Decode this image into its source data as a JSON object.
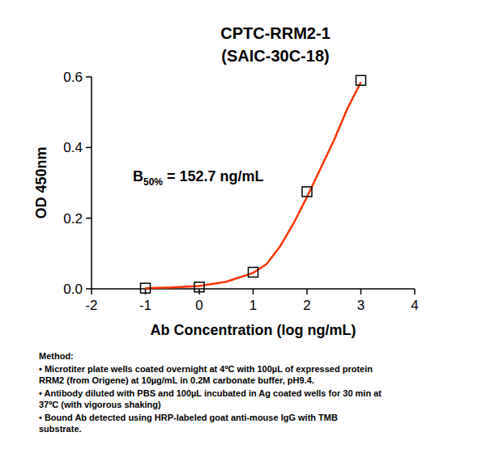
{
  "chart_data": {
    "type": "scatter",
    "title": "CPTC-RRM2-1",
    "subtitle": "(SAIC-30C-18)",
    "x_label": "Ab Concentration (log ng/mL)",
    "y_label": "OD 450nm",
    "xlim": [
      -2,
      4
    ],
    "xticks": [
      -2,
      -1,
      0,
      1,
      2,
      3,
      4
    ],
    "ylim": [
      0,
      0.6
    ],
    "yticks": [
      {
        "value": 0,
        "label": "0.0"
      },
      0.2,
      0.4,
      0.6
    ],
    "series": [
      {
        "type": "scatter",
        "marker": "square",
        "color": "#000000",
        "x": [
          -1,
          0,
          1,
          2,
          3
        ],
        "values": [
          0.002,
          0.005,
          0.047,
          0.275,
          0.59
        ]
      },
      {
        "type": "line",
        "color": "#ff3300",
        "line_style": "solid",
        "x": [
          -1,
          -0.5,
          0,
          0.5,
          1,
          1.25,
          1.5,
          1.75,
          2,
          2.25,
          2.5,
          2.75,
          3
        ],
        "values": [
          0.002,
          0.004,
          0.008,
          0.02,
          0.045,
          0.07,
          0.12,
          0.185,
          0.26,
          0.34,
          0.42,
          0.51,
          0.585
        ]
      }
    ],
    "annotation": {
      "text": "B",
      "subscript": "50%",
      "suffix": " = 152.7 ng/mL"
    },
    "notes": {
      "heading": "Method:",
      "items": [
        [
          "• Microtiter plate wells coated overnight at 4ºC  with 100µL of expressed protein",
          "RRM2 (from Origene) at 10µg/mL in 0.2M carbonate buffer, pH9.4."
        ],
        [
          "• Antibody diluted with PBS and 100µL incubated in Ag coated wells for 30 min at",
          "37ºC (with vigorous shaking)"
        ],
        [
          "• Bound Ab detected using HRP-labeled goat anti-mouse IgG with TMB",
          "substrate."
        ]
      ]
    }
  }
}
